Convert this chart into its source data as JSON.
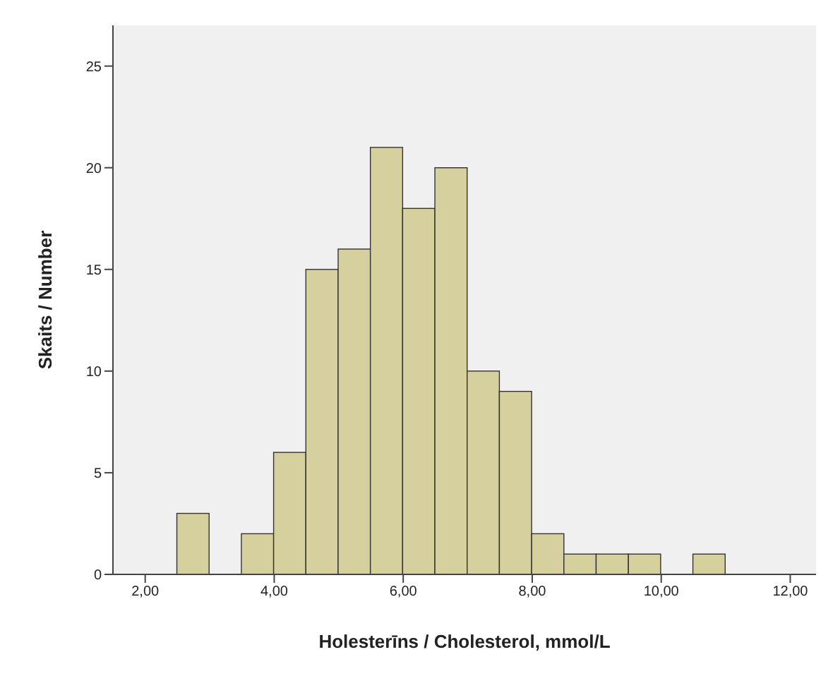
{
  "chart_data": {
    "type": "histogram",
    "xlabel": "Holesterīns / Cholesterol, mmol/L",
    "ylabel": "Skaits / Number",
    "bins": [
      2.5,
      3,
      3.5,
      4,
      4.5,
      5,
      5.5,
      6,
      6.5,
      7,
      7.5,
      8,
      8.5,
      9,
      9.5,
      10,
      10.5,
      11
    ],
    "values": [
      3,
      0,
      2,
      6,
      15,
      16,
      21,
      18,
      20,
      10,
      9,
      2,
      1,
      1,
      1,
      0,
      1
    ],
    "color": "#d6d09e",
    "xlim": [
      1.5,
      12.4
    ],
    "xticks": [
      {
        "value": 2,
        "label": "2,00"
      },
      {
        "value": 4,
        "label": "4,00"
      },
      {
        "value": 6,
        "label": "6,00"
      },
      {
        "value": 8,
        "label": "8,00"
      },
      {
        "value": 10,
        "label": "10,00"
      },
      {
        "value": 12,
        "label": "12,00"
      }
    ],
    "ylim": [
      0,
      27
    ],
    "yticks": [
      0,
      5,
      10,
      15,
      20,
      25
    ],
    "grid": false
  }
}
